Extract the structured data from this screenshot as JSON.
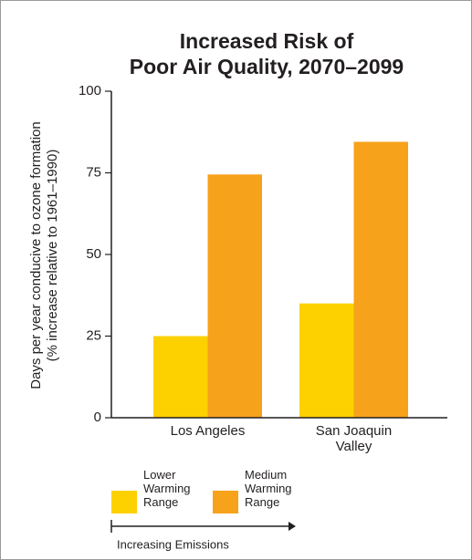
{
  "chart_data": {
    "type": "bar",
    "title": [
      "Increased Risk of",
      "Poor Air Quality, 2070–2099"
    ],
    "y_label": [
      "Days per year conducive to ozone formation",
      "(% increase relative to 1961–1990)"
    ],
    "categories": [
      "Los Angeles",
      "San Joaquin Valley"
    ],
    "series": [
      {
        "name": "Lower Warming Range",
        "color": "#fdd000",
        "values": [
          25,
          35
        ]
      },
      {
        "name": "Medium Warming Range",
        "color": "#f7a21b",
        "values": [
          74.5,
          84.5
        ]
      }
    ],
    "ylim": [
      0,
      100
    ],
    "yticks": [
      0,
      25,
      50,
      75,
      100
    ],
    "annotation": "Increasing Emissions"
  }
}
